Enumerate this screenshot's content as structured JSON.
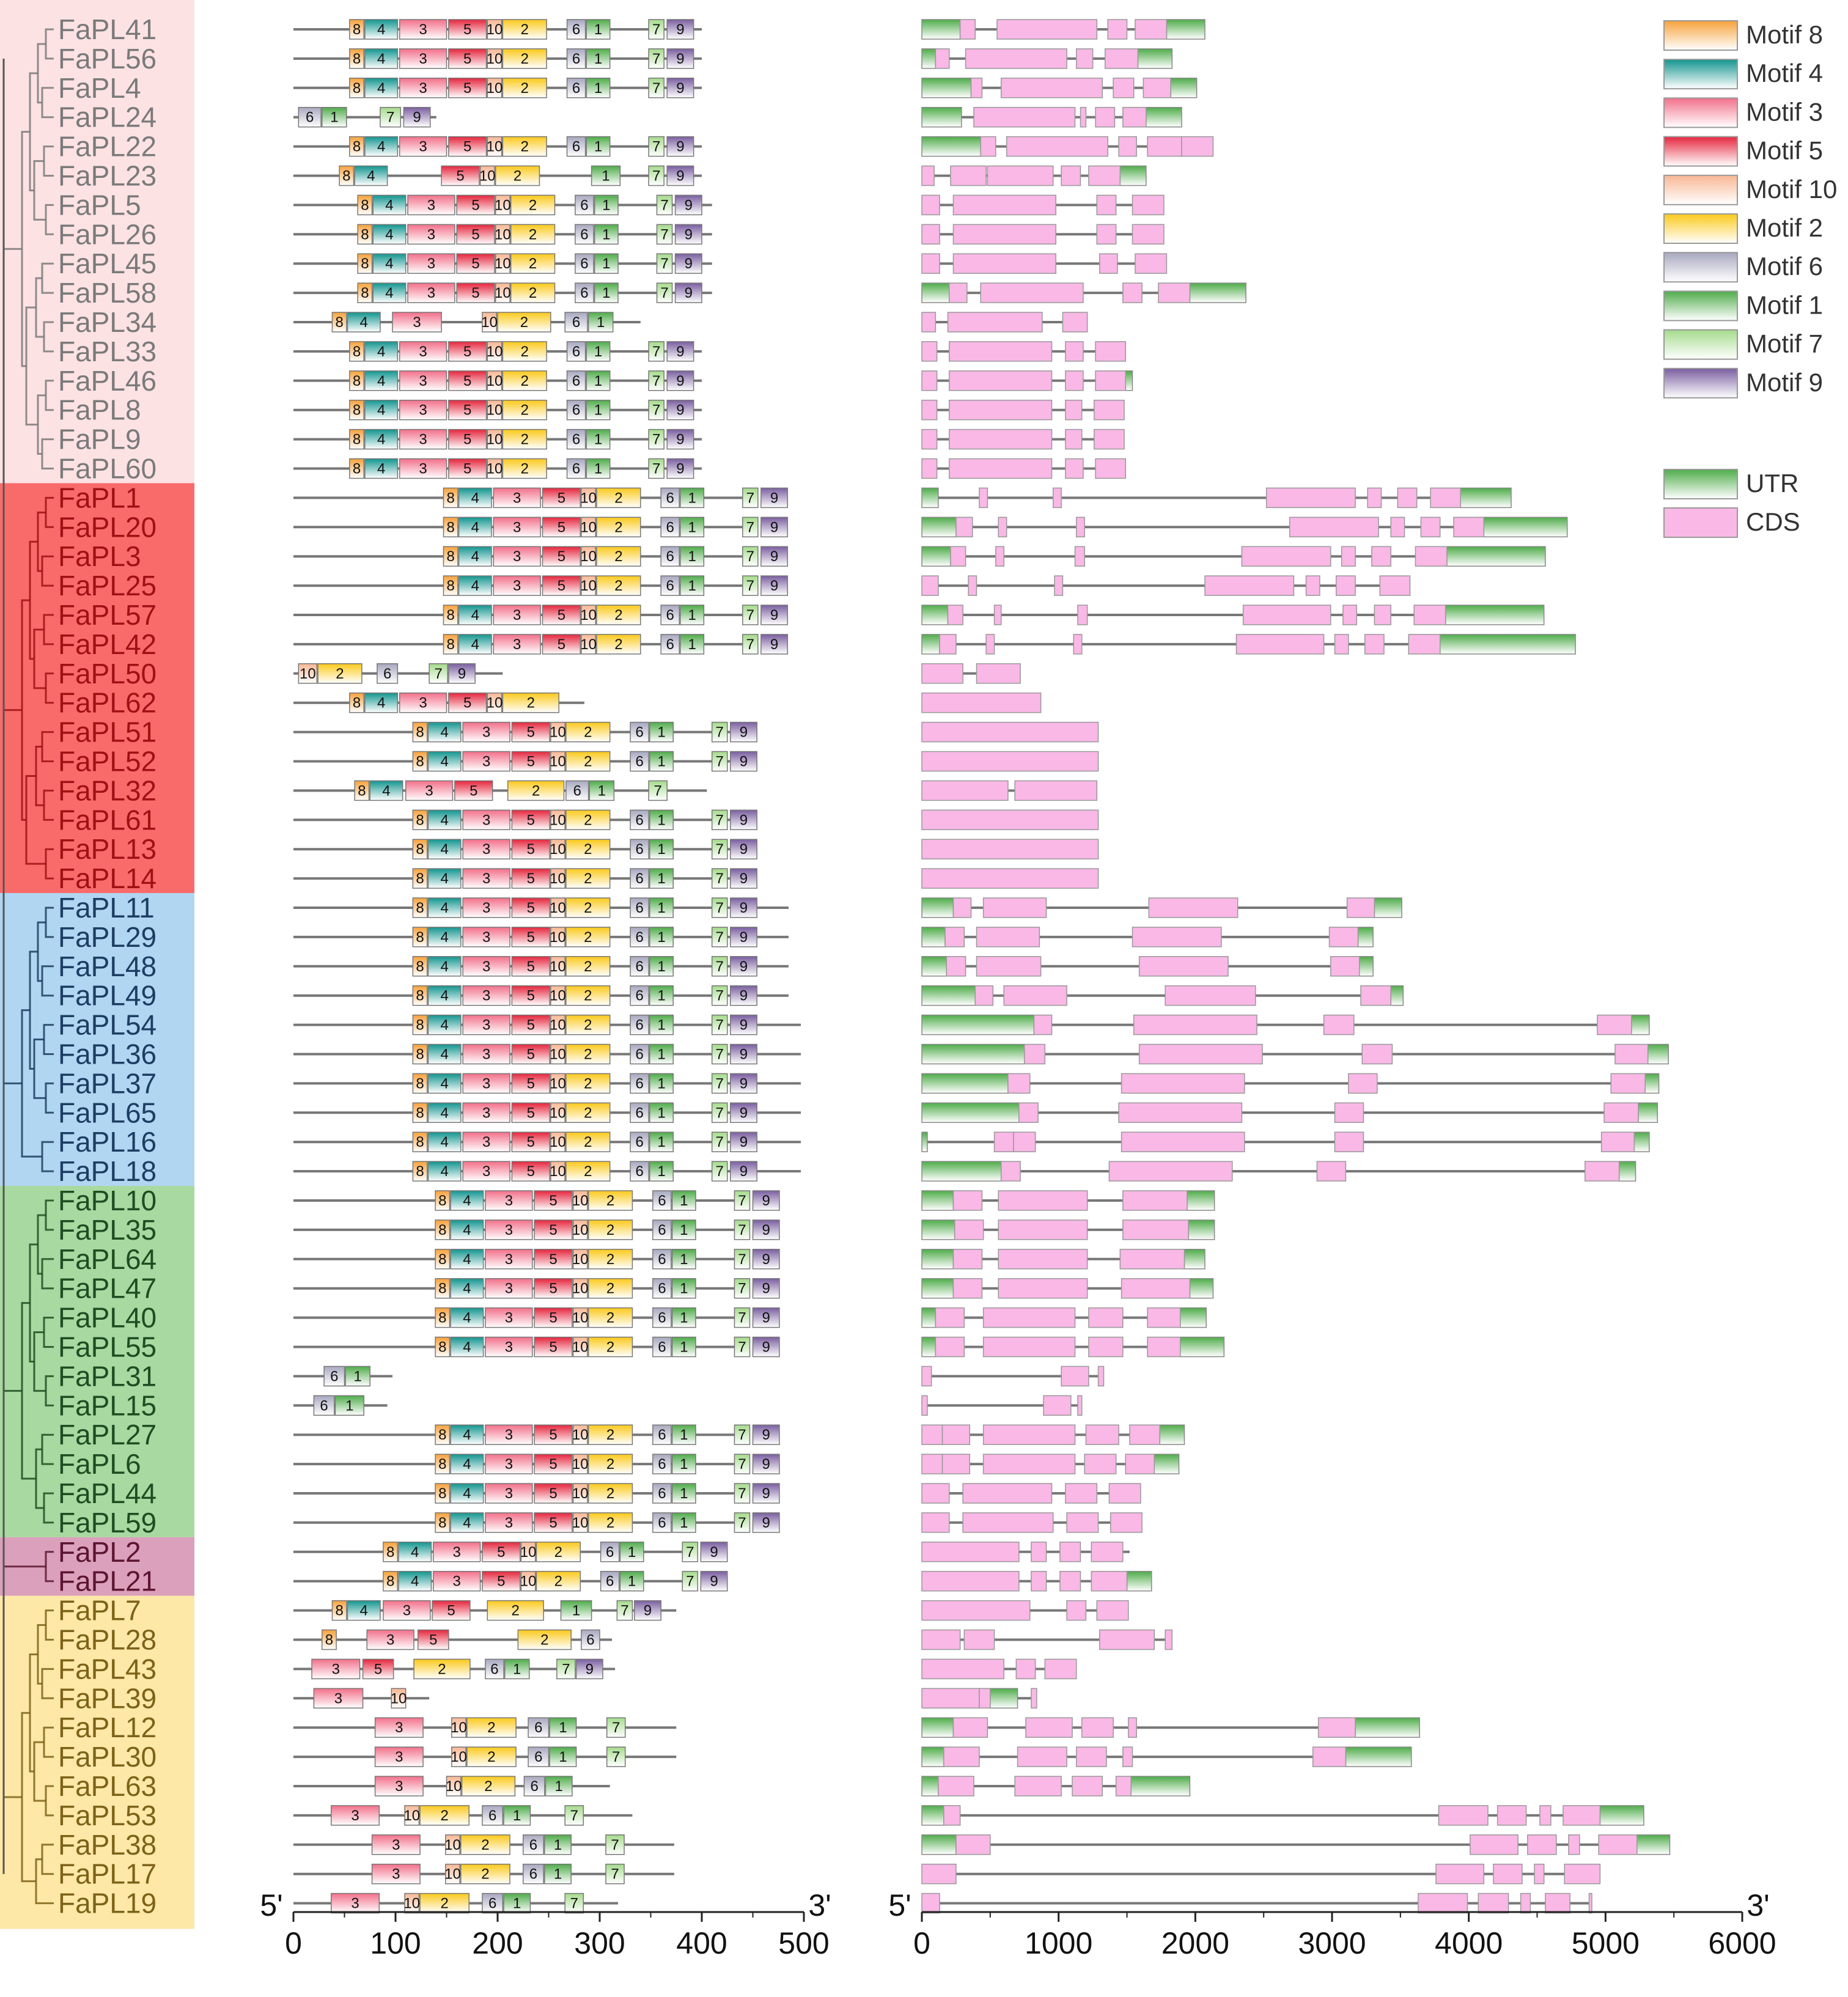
{
  "figure": {
    "motif_axis": {
      "label_start": "5'",
      "label_end": "3'",
      "ticks": [
        "0",
        "100",
        "200",
        "300",
        "400",
        "500"
      ],
      "max": 500
    },
    "gene_axis": {
      "label_start": "5'",
      "label_end": "3'",
      "ticks": [
        "0",
        "1000",
        "2000",
        "3000",
        "4000",
        "5000",
        "6000"
      ],
      "max": 6000
    },
    "legend": {
      "motifs": [
        {
          "id": "8",
          "label": "Motif 8",
          "color": "#f7a23b"
        },
        {
          "id": "4",
          "label": "Motif 4",
          "color": "#13958f"
        },
        {
          "id": "3",
          "label": "Motif 3",
          "color": "#f2708a"
        },
        {
          "id": "5",
          "label": "Motif 5",
          "color": "#e5263d"
        },
        {
          "id": "10",
          "label": "Motif 10",
          "color": "#f8b794"
        },
        {
          "id": "2",
          "label": "Motif 2",
          "color": "#fbc91c"
        },
        {
          "id": "6",
          "label": "Motif 6",
          "color": "#a8a8c0"
        },
        {
          "id": "1",
          "label": "Motif 1",
          "color": "#4fac4a"
        },
        {
          "id": "7",
          "label": "Motif 7",
          "color": "#a5db8c"
        },
        {
          "id": "9",
          "label": "Motif 9",
          "color": "#7a5ea0"
        }
      ],
      "structure": [
        {
          "id": "UTR",
          "label": "UTR",
          "color": "#4fac4a"
        },
        {
          "id": "CDS",
          "label": "CDS",
          "color": "#f9b8e6"
        }
      ]
    },
    "clades": [
      {
        "name": "pink",
        "color": "#fde2e4",
        "text_color": "#7a7a7a",
        "start": 0,
        "end": 16
      },
      {
        "name": "red",
        "color": "#f96b6b",
        "text_color": "#a01015",
        "start": 16,
        "end": 30
      },
      {
        "name": "blue",
        "color": "#b0d6f2",
        "text_color": "#1d3d62",
        "start": 30,
        "end": 40
      },
      {
        "name": "green",
        "color": "#a8d9a0",
        "text_color": "#1d4d22",
        "start": 40,
        "end": 52
      },
      {
        "name": "purple",
        "color": "#dba0bb",
        "text_color": "#5c1530",
        "start": 52,
        "end": 54
      },
      {
        "name": "yellow",
        "color": "#fde8a8",
        "text_color": "#7d6218",
        "start": 54,
        "end": 65
      }
    ],
    "genes": [
      "FaPL41",
      "FaPL56",
      "FaPL4",
      "FaPL24",
      "FaPL22",
      "FaPL23",
      "FaPL5",
      "FaPL26",
      "FaPL45",
      "FaPL58",
      "FaPL34",
      "FaPL33",
      "FaPL46",
      "FaPL8",
      "FaPL9",
      "FaPL60",
      "FaPL1",
      "FaPL20",
      "FaPL3",
      "FaPL25",
      "FaPL57",
      "FaPL42",
      "FaPL50",
      "FaPL62",
      "FaPL51",
      "FaPL52",
      "FaPL32",
      "FaPL61",
      "FaPL13",
      "FaPL14",
      "FaPL11",
      "FaPL29",
      "FaPL48",
      "FaPL49",
      "FaPL54",
      "FaPL36",
      "FaPL37",
      "FaPL65",
      "FaPL16",
      "FaPL18",
      "FaPL10",
      "FaPL35",
      "FaPL64",
      "FaPL47",
      "FaPL40",
      "FaPL55",
      "FaPL31",
      "FaPL15",
      "FaPL27",
      "FaPL6",
      "FaPL44",
      "FaPL59",
      "FaPL2",
      "FaPL21",
      "FaPL7",
      "FaPL28",
      "FaPL43",
      "FaPL39",
      "FaPL12",
      "FaPL30",
      "FaPL63",
      "FaPL53",
      "FaPL38",
      "FaPL17",
      "FaPL19"
    ]
  }
}
